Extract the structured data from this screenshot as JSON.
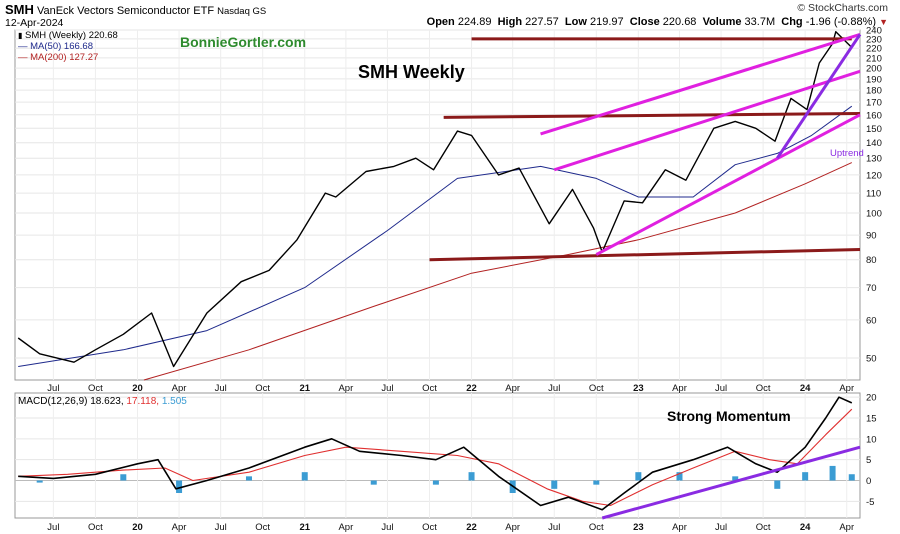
{
  "header": {
    "symbol": "SMH",
    "name": "VanEck Vectors Semiconductor ETF",
    "exchange": "Nasdaq GS",
    "date": "12-Apr-2024",
    "brand": "© StockCharts.com",
    "quote": {
      "open_label": "Open",
      "open": "224.89",
      "high_label": "High",
      "high": "227.57",
      "low_label": "Low",
      "low": "219.97",
      "close_label": "Close",
      "close": "220.68",
      "volume_label": "Volume",
      "volume": "33.7M",
      "chg_label": "Chg",
      "chg": "-1.96 (-0.88%)"
    }
  },
  "legend": {
    "price": "SMH (Weekly) 220.68",
    "ma50": "MA(50) 166.68",
    "ma200": "MA(200) 127.27",
    "macd_label": "MACD(12,26,9)",
    "macd_val": "18.623,",
    "signal_val": "17.118,",
    "hist_val": "1.505"
  },
  "annotations": {
    "site": "BonnieGortler.com",
    "title": "SMH Weekly",
    "uptrend": "Uptrend",
    "momentum": "Strong Momentum"
  },
  "colors": {
    "price": "#000000",
    "ma50": "#1f2a8c",
    "ma200": "#b22222",
    "resistance": "#8b1a1a",
    "channel": "#e020e0",
    "uptrend": "#8a2be2",
    "macd": "#000000",
    "signal": "#e03030",
    "hist": "#3b9cd3",
    "site": "#2e8b2e"
  },
  "chart_data": [
    {
      "type": "line",
      "name": "SMH Weekly price panel",
      "scale": "log",
      "ylim": [
        45,
        240
      ],
      "y_ticks": [
        50,
        60,
        70,
        80,
        90,
        100,
        110,
        120,
        130,
        140,
        150,
        160,
        170,
        180,
        190,
        200,
        210,
        220,
        230,
        240
      ],
      "x_ticks": [
        "Jul",
        "Oct",
        "20",
        "Apr",
        "Jul",
        "Oct",
        "21",
        "Apr",
        "Jul",
        "Oct",
        "22",
        "Apr",
        "Jul",
        "Oct",
        "23",
        "Apr",
        "Jul",
        "Oct",
        "24",
        "Apr"
      ],
      "x_tick_dates": [
        "2019-07-01",
        "2019-10-01",
        "2020-01-01",
        "2020-04-01",
        "2020-07-01",
        "2020-10-01",
        "2021-01-01",
        "2021-04-01",
        "2021-07-01",
        "2021-10-01",
        "2022-01-01",
        "2022-04-01",
        "2022-07-01",
        "2022-10-01",
        "2023-01-01",
        "2023-04-01",
        "2023-07-01",
        "2023-10-01",
        "2024-01-01",
        "2024-04-01"
      ],
      "series": [
        {
          "name": "SMH (Weekly)",
          "x": [
            "2019-04-15",
            "2019-06-01",
            "2019-08-15",
            "2019-10-01",
            "2019-12-01",
            "2020-02-01",
            "2020-03-20",
            "2020-06-01",
            "2020-08-15",
            "2020-10-15",
            "2020-12-15",
            "2021-02-15",
            "2021-03-10",
            "2021-05-15",
            "2021-07-15",
            "2021-09-01",
            "2021-10-10",
            "2021-12-01",
            "2022-01-01",
            "2022-03-01",
            "2022-04-15",
            "2022-06-20",
            "2022-08-10",
            "2022-09-25",
            "2022-10-14",
            "2022-12-01",
            "2023-01-10",
            "2023-03-01",
            "2023-04-15",
            "2023-06-15",
            "2023-08-01",
            "2023-09-15",
            "2023-10-27",
            "2023-12-01",
            "2024-01-05",
            "2024-02-01",
            "2024-03-01",
            "2024-03-08",
            "2024-04-12"
          ],
          "y": [
            55,
            51,
            49,
            52,
            56,
            62,
            48,
            62,
            72,
            76,
            88,
            110,
            108,
            122,
            125,
            130,
            123,
            148,
            145,
            120,
            124,
            95,
            112,
            93,
            83,
            106,
            105,
            123,
            117,
            150,
            155,
            150,
            141,
            173,
            164,
            205,
            225,
            238,
            220.68
          ]
        },
        {
          "name": "MA(50)",
          "x": [
            "2019-04-15",
            "2019-12-01",
            "2020-06-01",
            "2021-01-01",
            "2021-07-01",
            "2021-12-01",
            "2022-06-01",
            "2022-10-01",
            "2023-01-01",
            "2023-05-01",
            "2023-08-01",
            "2023-11-01",
            "2024-01-15",
            "2024-04-12"
          ],
          "y": [
            48,
            52,
            57,
            70,
            92,
            118,
            125,
            118,
            108,
            108,
            126,
            133,
            145,
            166.68
          ]
        },
        {
          "name": "MA(200)",
          "x": [
            "2020-01-15",
            "2020-09-01",
            "2021-06-01",
            "2022-01-01",
            "2022-08-01",
            "2023-01-01",
            "2023-08-01",
            "2024-01-01",
            "2024-04-12"
          ],
          "y": [
            45,
            52,
            64,
            75,
            82,
            88,
            100,
            115,
            127.27
          ]
        }
      ],
      "annotation_lines": [
        {
          "name": "resistance-top",
          "x": [
            "2022-01-01",
            "2024-04-12"
          ],
          "y": [
            230,
            230
          ]
        },
        {
          "name": "resistance-mid",
          "x": [
            "2021-11-01",
            "2024-04-30"
          ],
          "y": [
            158,
            161
          ]
        },
        {
          "name": "support-bottom",
          "x": [
            "2021-10-01",
            "2024-04-30"
          ],
          "y": [
            80,
            84
          ]
        },
        {
          "name": "channel-upper",
          "x": [
            "2022-06-01",
            "2024-04-30"
          ],
          "y": [
            146,
            235
          ]
        },
        {
          "name": "channel-middle",
          "x": [
            "2022-07-01",
            "2024-04-30"
          ],
          "y": [
            123,
            197
          ]
        },
        {
          "name": "channel-lower",
          "x": [
            "2022-10-01",
            "2024-04-30"
          ],
          "y": [
            82,
            160
          ]
        },
        {
          "name": "uptrend",
          "x": [
            "2023-11-01",
            "2024-04-30"
          ],
          "y": [
            130,
            235
          ]
        }
      ]
    },
    {
      "type": "line",
      "name": "MACD(12,26,9) panel",
      "ylim": [
        -9,
        21
      ],
      "y_ticks": [
        -5,
        0,
        5,
        10,
        15,
        20
      ],
      "series": [
        {
          "name": "MACD",
          "x": [
            "2019-04-15",
            "2019-07-01",
            "2019-10-01",
            "2020-01-01",
            "2020-02-15",
            "2020-03-25",
            "2020-06-01",
            "2020-09-01",
            "2021-01-01",
            "2021-03-01",
            "2021-05-01",
            "2021-08-01",
            "2021-10-15",
            "2021-12-15",
            "2022-03-01",
            "2022-06-01",
            "2022-08-01",
            "2022-10-14",
            "2022-12-01",
            "2023-02-01",
            "2023-05-01",
            "2023-07-15",
            "2023-09-15",
            "2023-11-01",
            "2024-01-01",
            "2024-02-15",
            "2024-03-15",
            "2024-04-12"
          ],
          "y": [
            1,
            0.5,
            1.5,
            4,
            5,
            -2,
            0,
            3,
            8,
            10,
            7,
            6,
            5,
            8,
            1,
            -6,
            -4,
            -7,
            -3,
            2,
            5,
            8,
            4,
            2,
            8,
            15,
            20,
            18.623
          ]
        },
        {
          "name": "Signal",
          "x": [
            "2019-04-15",
            "2019-08-01",
            "2019-12-01",
            "2020-03-01",
            "2020-05-01",
            "2020-09-01",
            "2021-01-01",
            "2021-04-01",
            "2021-08-01",
            "2021-12-01",
            "2022-03-01",
            "2022-06-15",
            "2022-09-01",
            "2022-11-01",
            "2023-02-01",
            "2023-05-01",
            "2023-08-01",
            "2023-10-15",
            "2023-12-15",
            "2024-02-15",
            "2024-04-12"
          ],
          "y": [
            1,
            1.5,
            2.5,
            3,
            0,
            2,
            6,
            8,
            7,
            6,
            4,
            -2,
            -5,
            -6,
            -1,
            3,
            7,
            5,
            4,
            11,
            17.118
          ]
        }
      ],
      "histogram": {
        "name": "Histogram",
        "x": [
          "2019-06-01",
          "2019-12-01",
          "2020-04-01",
          "2020-09-01",
          "2021-01-01",
          "2021-06-01",
          "2021-10-15",
          "2022-01-01",
          "2022-04-01",
          "2022-07-01",
          "2022-10-01",
          "2023-01-01",
          "2023-04-01",
          "2023-08-01",
          "2023-11-01",
          "2024-01-01",
          "2024-03-01",
          "2024-04-12"
        ],
        "y": [
          -0.5,
          1.5,
          -3,
          1,
          2,
          -1,
          -1,
          2,
          -3,
          -2,
          -1,
          2,
          2,
          1,
          -2,
          2,
          3.5,
          1.505
        ]
      },
      "annotation_lines": [
        {
          "name": "momentum-trendline",
          "x": [
            "2022-10-14",
            "2024-04-30"
          ],
          "y": [
            -9,
            8
          ]
        }
      ]
    }
  ]
}
